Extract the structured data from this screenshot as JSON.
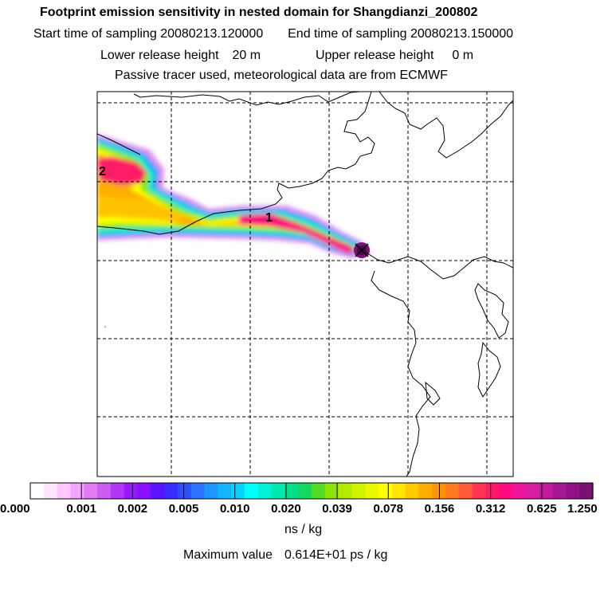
{
  "header": {
    "title": "Footprint emission sensitivity in nested domain for Shangdianzi_200802",
    "start_label": "Start time of sampling",
    "start_value": "20080213.120000",
    "end_label": "End time of sampling",
    "end_value": "20080213.150000",
    "lower_label": "Lower release height",
    "lower_value": "20 m",
    "upper_label": "Upper release height",
    "upper_value": "0 m",
    "tracer_note": "Passive tracer used, meteorological data are from ECMWF"
  },
  "map": {
    "labels": [
      "1",
      "2"
    ],
    "receptor_marker": "x-marker"
  },
  "colorbar": {
    "tick_labels": [
      "0.000",
      "0.001",
      "0.002",
      "0.005",
      "0.010",
      "0.020",
      "0.039",
      "0.078",
      "0.156",
      "0.312",
      "0.625",
      "1.250"
    ],
    "colors": [
      "#ffffff",
      "#ffe6ff",
      "#ffc6ff",
      "#f2a6ff",
      "#e27cf5",
      "#cc5cf0",
      "#b236f5",
      "#9a18ff",
      "#8a10ff",
      "#5a14ff",
      "#3a2cff",
      "#2f50ff",
      "#2a74ff",
      "#1f96ff",
      "#14b4ff",
      "#08d2ff",
      "#00ffff",
      "#00f0d8",
      "#00e8b0",
      "#00e08a",
      "#12d860",
      "#52dc28",
      "#8ae600",
      "#b4ec00",
      "#d2f200",
      "#eaf800",
      "#ffff00",
      "#ffe600",
      "#ffca00",
      "#ffae00",
      "#ff9400",
      "#ff7a1e",
      "#ff5a3a",
      "#ff3450",
      "#ff1a66",
      "#ff0a80",
      "#f0149a",
      "#d81ea0",
      "#c01c9c",
      "#a61894",
      "#901488",
      "#7a1070"
    ],
    "units": "ns / kg",
    "max_label": "Maximum value",
    "max_value": "0.614E+01 ps / kg"
  }
}
